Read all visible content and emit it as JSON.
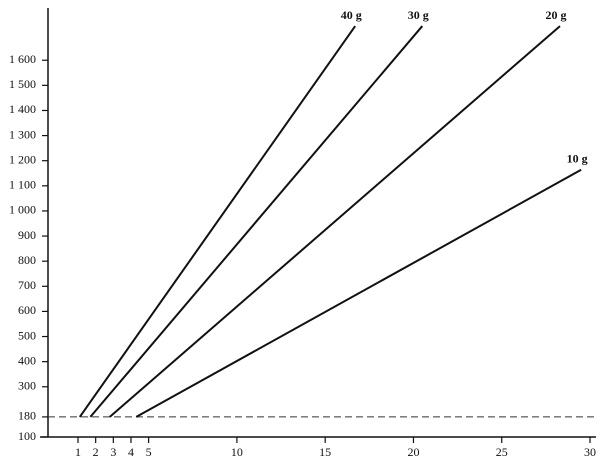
{
  "chart_data": {
    "type": "line",
    "series": [
      {
        "name": "40 g",
        "color": "#111111",
        "x": [
          1.1,
          16.7
        ],
        "values": [
          180,
          1736
        ]
      },
      {
        "name": "30 g",
        "color": "#111111",
        "x": [
          1.7,
          20.5
        ],
        "values": [
          180,
          1736
        ]
      },
      {
        "name": "20 g",
        "color": "#111111",
        "x": [
          2.8,
          28.3
        ],
        "values": [
          180,
          1736
        ]
      },
      {
        "name": "10 g",
        "color": "#111111",
        "x": [
          4.3,
          29.5
        ],
        "values": [
          180,
          1164
        ]
      }
    ],
    "reference_line": 180,
    "xlim": [
      -0.7,
      30
    ],
    "xticks": [
      1,
      2,
      3,
      4,
      5,
      10,
      15,
      20,
      25,
      30
    ],
    "ylim": [
      100,
      1800
    ],
    "yticks": [
      100,
      180,
      300,
      400,
      500,
      600,
      700,
      800,
      900,
      {
        "value": 1000,
        "label": "1 000"
      },
      {
        "value": 1100,
        "label": "1 100"
      },
      {
        "value": 1200,
        "label": "1 200"
      },
      {
        "value": 1300,
        "label": "1 300"
      },
      {
        "value": 1400,
        "label": "1 400"
      },
      {
        "value": 1500,
        "label": "1 500"
      },
      {
        "value": 1600,
        "label": "1 600"
      }
    ]
  }
}
